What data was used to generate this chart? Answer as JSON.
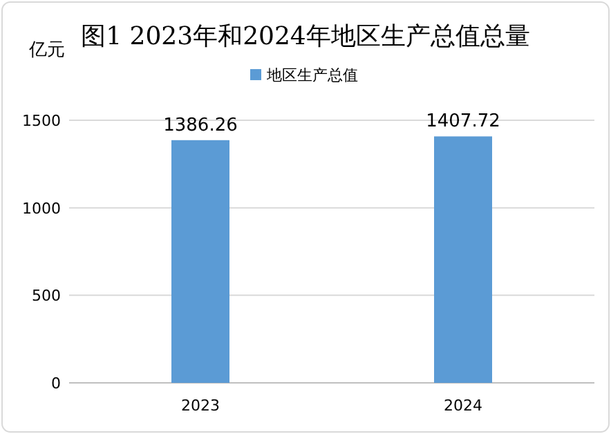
{
  "chart_data": {
    "type": "bar",
    "title": "图1 2023年和2024年地区生产总值总量",
    "ylabel": "亿元",
    "categories": [
      "2023",
      "2024"
    ],
    "series": [
      {
        "name": "地区生产总值",
        "color": "#5b9bd5",
        "values": [
          1386.26,
          1407.72
        ]
      }
    ],
    "ylim": [
      0,
      1500
    ],
    "yticks": [
      0,
      500,
      1000,
      1500
    ],
    "grid": "y",
    "legend": "top",
    "data_labels": true
  }
}
